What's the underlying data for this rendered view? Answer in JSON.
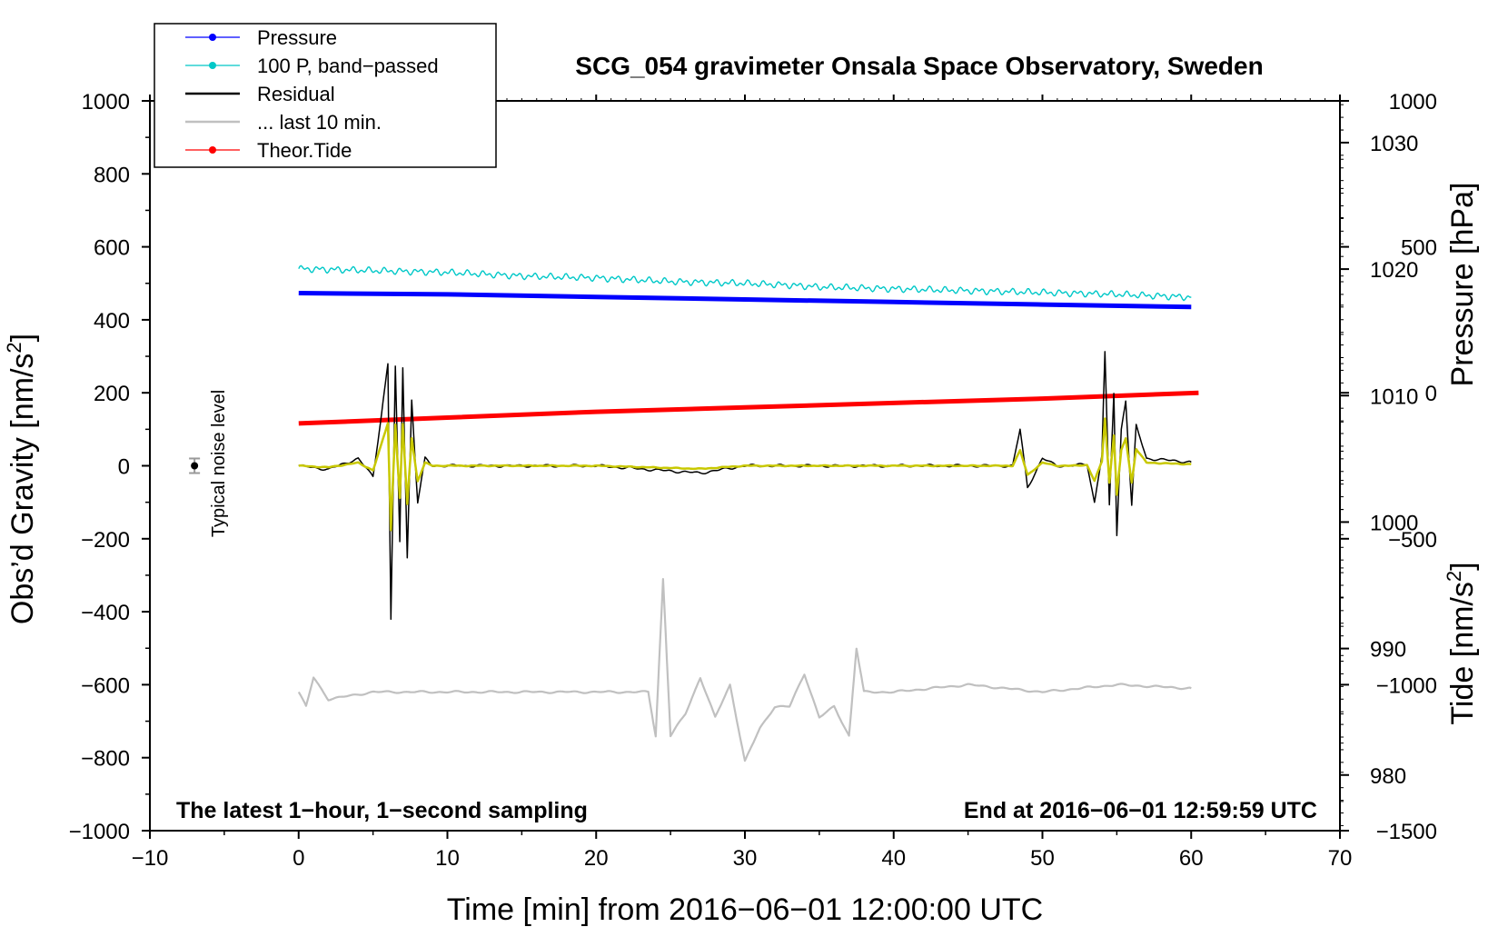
{
  "chart_data": {
    "type": "line",
    "title": "SCG_054 gravimeter Onsala Space Observatory, Sweden",
    "xlabel": "Time [min] from 2016−06−01 12:00:00 UTC",
    "ylabel": "Obs’d Gravity [nm/s",
    "ylabel_sup": "2",
    "ylabel_close": "]",
    "y2label": "Pressure [hPa]",
    "y3label": "Tide [nm/s",
    "y3label_sup": "2",
    "y3label_close": "]",
    "xlim": [
      -10,
      70
    ],
    "ylim": [
      -1000,
      1000
    ],
    "pressure_ylim": [
      975.6,
      1033.3
    ],
    "tide_ylim": [
      -1500,
      1000
    ],
    "x_ticks": [
      -10,
      0,
      10,
      20,
      30,
      40,
      50,
      60,
      70
    ],
    "x_tick_labels": [
      "−10",
      "0",
      "10",
      "20",
      "30",
      "40",
      "50",
      "60",
      "70"
    ],
    "y_ticks": [
      -1000,
      -800,
      -600,
      -400,
      -200,
      0,
      200,
      400,
      600,
      800,
      1000
    ],
    "y_tick_labels": [
      "−1000",
      "−800",
      "−600",
      "−400",
      "−200",
      "0",
      "200",
      "400",
      "600",
      "800",
      "1000"
    ],
    "pressure_ticks": [
      980,
      990,
      1000,
      1010,
      1020,
      1030
    ],
    "pressure_tick_labels": [
      "980",
      "990",
      "1000",
      "1010",
      "1020",
      "1030"
    ],
    "tide_ticks": [
      -1500,
      -1000,
      -500,
      0,
      500,
      1000
    ],
    "tide_tick_labels": [
      "−1500",
      "−1000",
      "−500",
      "0",
      "500",
      "1000"
    ],
    "annotation_left": "The latest 1−hour, 1−second sampling",
    "annotation_right": "End at 2016−06−01 12:59:59 UTC",
    "noise_label": "Typical noise level",
    "noise_marker": {
      "x": -7,
      "y": 0,
      "err": 20
    },
    "colors": {
      "pressure": "#0000ff",
      "bandpass": "#00c8c8",
      "residual": "#000000",
      "last10": "#c0c0c0",
      "tide": "#ff0000",
      "filtered": "#c8c800"
    },
    "legend": [
      {
        "name": "Pressure",
        "color": "#0000ff",
        "marker": true
      },
      {
        "name": "100 P, band−passed",
        "color": "#00c8c8",
        "marker": true
      },
      {
        "name": "Residual",
        "color": "#000000",
        "marker": false
      },
      {
        "name": "... last 10 min.",
        "color": "#c0c0c0",
        "marker": false
      },
      {
        "name": "Theor.Tide",
        "color": "#ff0000",
        "marker": true
      }
    ],
    "series": [
      {
        "name": "Pressure",
        "axis": "pressure",
        "x": [
          0,
          10,
          20,
          30,
          40,
          50,
          60
        ],
        "y": [
          1018.1,
          1018.0,
          1017.8,
          1017.6,
          1017.4,
          1017.2,
          1017.0
        ]
      },
      {
        "name": "100 P, band−passed",
        "axis": "left",
        "x": [
          0,
          5,
          10,
          15,
          20,
          25,
          30,
          33,
          35,
          40,
          45,
          50,
          55,
          60
        ],
        "y": [
          540,
          535,
          530,
          520,
          515,
          505,
          500,
          495,
          490,
          485,
          480,
          475,
          470,
          462
        ]
      },
      {
        "name": "Residual",
        "axis": "left",
        "x": [
          0,
          2,
          4,
          5,
          5.5,
          6,
          6.2,
          6.5,
          6.8,
          7,
          7.3,
          7.6,
          8,
          8.5,
          9,
          10,
          20,
          27,
          30,
          40,
          48,
          48.5,
          49,
          50,
          51,
          52,
          53,
          53.5,
          54,
          54.2,
          54.5,
          54.8,
          55,
          55.3,
          55.6,
          56,
          56.3,
          57,
          60
        ],
        "y": [
          0,
          -10,
          20,
          -30,
          120,
          280,
          -420,
          270,
          -210,
          270,
          -250,
          180,
          -100,
          20,
          0,
          0,
          0,
          -20,
          0,
          0,
          0,
          100,
          -60,
          20,
          0,
          0,
          5,
          -100,
          30,
          310,
          -110,
          200,
          -190,
          100,
          180,
          -110,
          110,
          20,
          10
        ]
      },
      {
        "name": "... last 10 min.",
        "axis": "left",
        "x": [
          0,
          0.5,
          1,
          2,
          5,
          20,
          23.5,
          24,
          24.5,
          25,
          26,
          27,
          28,
          29,
          30,
          31,
          32,
          33,
          34,
          35,
          36,
          37,
          37.5,
          38,
          39,
          40,
          45,
          50,
          55,
          60
        ],
        "y": [
          -620,
          -660,
          -580,
          -640,
          -620,
          -620,
          -620,
          -740,
          -310,
          -740,
          -680,
          -580,
          -690,
          -600,
          -810,
          -720,
          -660,
          -660,
          -570,
          -690,
          -660,
          -740,
          -500,
          -620,
          -620,
          -620,
          -600,
          -620,
          -600,
          -610
        ]
      },
      {
        "name": "Theor.Tide",
        "axis": "tide",
        "x": [
          0,
          10,
          20,
          30,
          40,
          50,
          60.5
        ],
        "y": [
          -105,
          -85,
          -65,
          -50,
          -35,
          -20,
          0
        ]
      }
    ]
  }
}
